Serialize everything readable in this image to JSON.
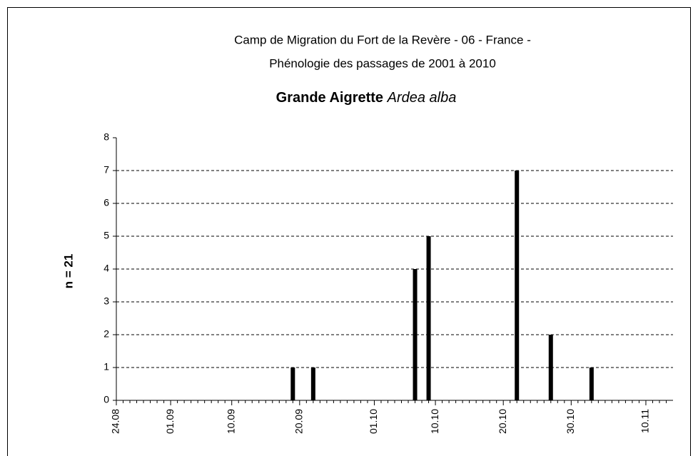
{
  "chart_data": {
    "type": "bar",
    "title": [
      "Camp de Migration du Fort de la Revère - 06 - France -",
      "Phénologie des passages de 2001 à 2010"
    ],
    "subtitle": "Grande Aigrette",
    "subtitle_latin": "Ardea alba",
    "y_label": "n =  21",
    "categories": [
      "24.08",
      null,
      null,
      null,
      null,
      null,
      null,
      null,
      "01.09",
      null,
      null,
      null,
      null,
      null,
      null,
      null,
      null,
      "10.09",
      null,
      null,
      null,
      null,
      null,
      null,
      null,
      null,
      null,
      "20.09",
      null,
      null,
      null,
      null,
      null,
      null,
      null,
      null,
      null,
      null,
      "01.10",
      null,
      null,
      null,
      null,
      null,
      null,
      null,
      null,
      "10.10",
      null,
      null,
      null,
      null,
      null,
      null,
      null,
      null,
      null,
      "20.10",
      null,
      null,
      null,
      null,
      null,
      null,
      null,
      null,
      null,
      "30.10",
      null,
      null,
      null,
      null,
      null,
      null,
      null,
      null,
      null,
      null,
      "10.11",
      null,
      null,
      null
    ],
    "values": [
      0,
      0,
      0,
      0,
      0,
      0,
      0,
      0,
      0,
      0,
      0,
      0,
      0,
      0,
      0,
      0,
      0,
      0,
      0,
      0,
      0,
      0,
      0,
      0,
      0,
      0,
      1,
      0,
      0,
      1,
      0,
      0,
      0,
      0,
      0,
      0,
      0,
      0,
      0,
      0,
      0,
      0,
      0,
      0,
      4,
      0,
      5,
      0,
      0,
      0,
      0,
      0,
      0,
      0,
      0,
      0,
      0,
      0,
      0,
      7,
      0,
      0,
      0,
      0,
      2,
      0,
      0,
      0,
      0,
      0,
      1,
      0,
      0,
      0,
      0,
      0,
      0,
      0,
      0,
      0,
      0,
      0
    ],
    "color": "#000000",
    "ylim": [
      0,
      8
    ],
    "yticks": [
      0,
      1,
      2,
      3,
      4,
      5,
      6,
      7,
      8
    ],
    "grid": true
  }
}
